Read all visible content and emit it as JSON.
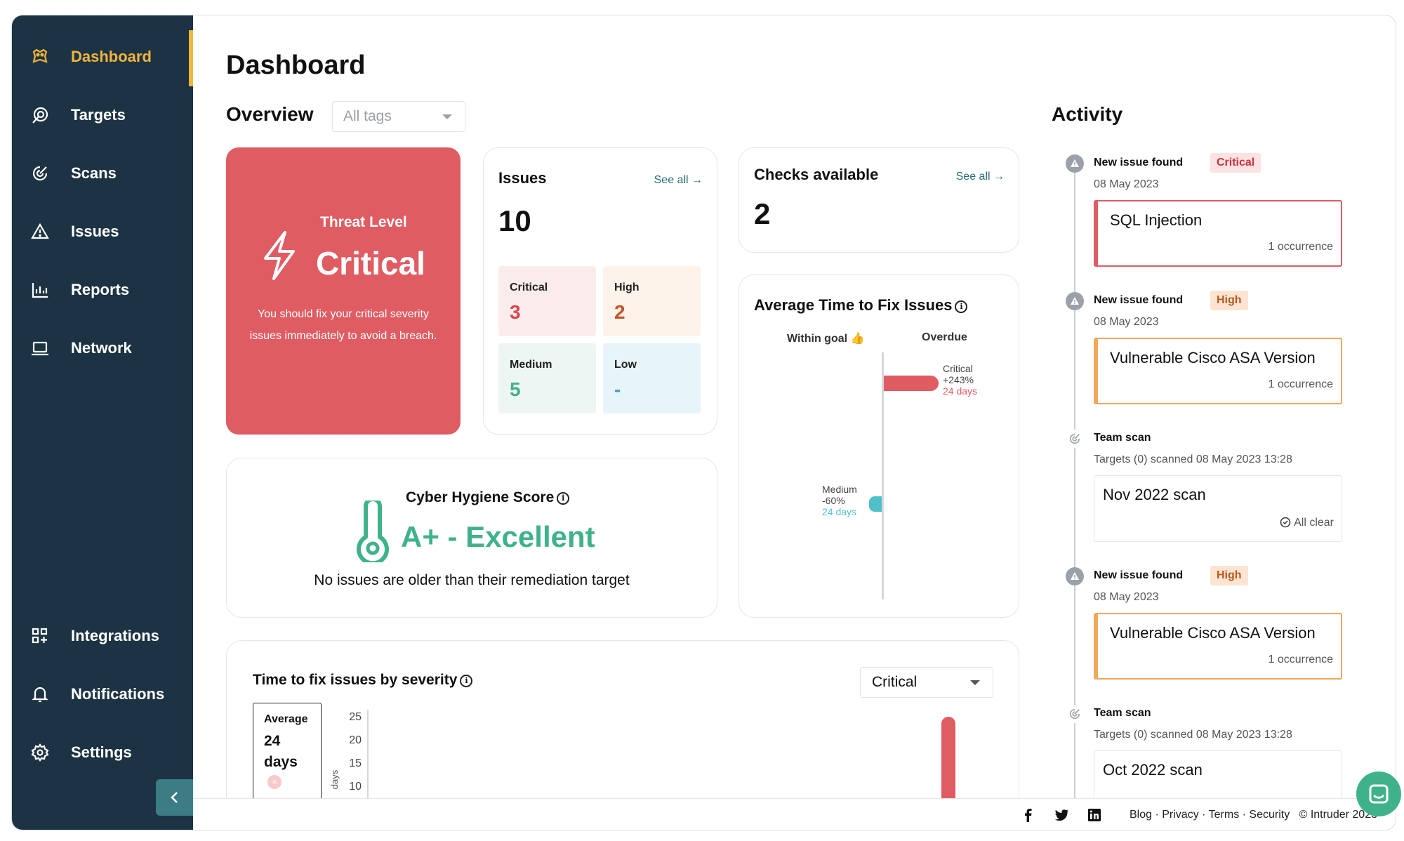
{
  "sidebar": {
    "items": [
      {
        "label": "Dashboard",
        "icon": "dashboard-icon"
      },
      {
        "label": "Targets",
        "icon": "targets-icon"
      },
      {
        "label": "Scans",
        "icon": "scans-icon"
      },
      {
        "label": "Issues",
        "icon": "warning-icon"
      },
      {
        "label": "Reports",
        "icon": "chart-icon"
      },
      {
        "label": "Network",
        "icon": "laptop-icon"
      },
      {
        "label": "Integrations",
        "icon": "grid-icon"
      },
      {
        "label": "Notifications",
        "icon": "bell-icon"
      },
      {
        "label": "Settings",
        "icon": "gear-icon"
      }
    ]
  },
  "page": {
    "title": "Dashboard"
  },
  "overview": {
    "title": "Overview",
    "tags_placeholder": "All tags"
  },
  "threat": {
    "label": "Threat Level",
    "value": "Critical",
    "description": "You should fix your critical severity issues immediately to avoid a breach."
  },
  "issues": {
    "title": "Issues",
    "see_all": "See all",
    "total": "10",
    "severity": [
      {
        "name": "Critical",
        "value": "3"
      },
      {
        "name": "High",
        "value": "2"
      },
      {
        "name": "Medium",
        "value": "5"
      },
      {
        "name": "Low",
        "value": "-"
      }
    ]
  },
  "checks": {
    "title": "Checks available",
    "see_all": "See all",
    "value": "2"
  },
  "avg_fix": {
    "title": "Average Time to Fix Issues",
    "col_within": "Within goal",
    "col_overdue": "Overdue",
    "critical": {
      "label": "Critical",
      "pct": "+243%",
      "days": "24 days"
    },
    "medium": {
      "label": "Medium",
      "pct": "-60%",
      "days": "24 days"
    }
  },
  "hygiene": {
    "title": "Cyber Hygiene Score",
    "grade": "A+ - Excellent",
    "note": "No issues are older than their remediation target"
  },
  "time_fix": {
    "title": "Time to fix issues by severity",
    "select": "Critical",
    "avg_label": "Average",
    "avg_value": "24",
    "avg_unit": "days",
    "axis_unit": "days",
    "ticks": [
      "25",
      "20",
      "15",
      "10"
    ]
  },
  "activity": {
    "title": "Activity",
    "items": [
      {
        "type": "issue",
        "head": "New issue found",
        "badge": "Critical",
        "date": "08 May 2023",
        "card_title": "SQL Injection",
        "card_note": "1 occurrence"
      },
      {
        "type": "issue",
        "head": "New issue found",
        "badge": "High",
        "date": "08 May 2023",
        "card_title": "Vulnerable Cisco ASA Version",
        "card_note": "1 occurrence"
      },
      {
        "type": "scan",
        "head": "Team scan",
        "date": "Targets (0) scanned 08 May 2023 13:28",
        "card_title": "Nov 2022 scan",
        "card_note": "All clear"
      },
      {
        "type": "issue",
        "head": "New issue found",
        "badge": "High",
        "date": "08 May 2023",
        "card_title": "Vulnerable Cisco ASA Version",
        "card_note": "1 occurrence"
      },
      {
        "type": "scan",
        "head": "Team scan",
        "date": "Targets (0) scanned 08 May 2023 13:28",
        "card_title": "Oct 2022 scan",
        "card_note": ""
      }
    ]
  },
  "footer": {
    "links": [
      "Blog",
      "Privacy",
      "Terms",
      "Security"
    ],
    "copyright": "Intruder 2023"
  },
  "colors": {
    "sidebar": "#1c3344",
    "accent": "#f2b43c",
    "critical": "#e05c63",
    "high": "#c0552b",
    "medium": "#3fb28c",
    "low": "#3c9fb5",
    "link": "#2a6b74"
  }
}
